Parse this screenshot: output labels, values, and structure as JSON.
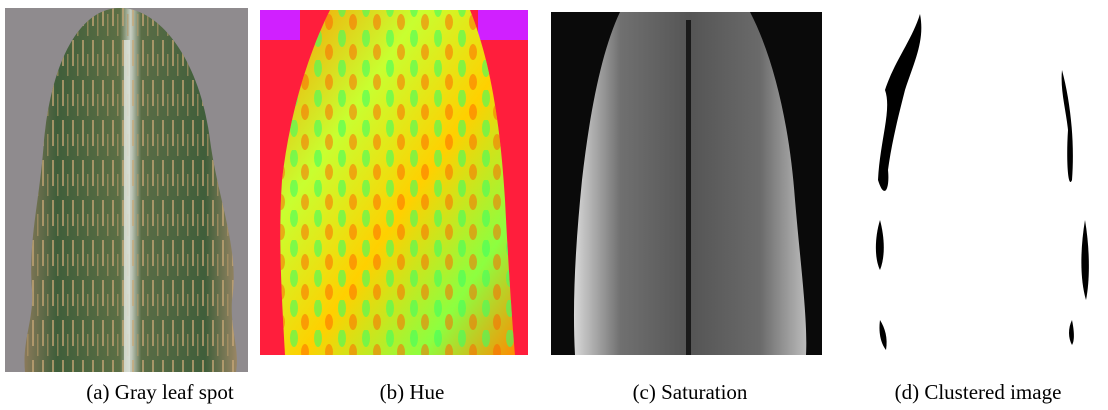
{
  "panels": [
    {
      "caption": "(a) Gray leaf spot"
    },
    {
      "caption": "(b) Hue"
    },
    {
      "caption": "(c) Saturation"
    },
    {
      "caption": "(d) Clustered image"
    }
  ]
}
